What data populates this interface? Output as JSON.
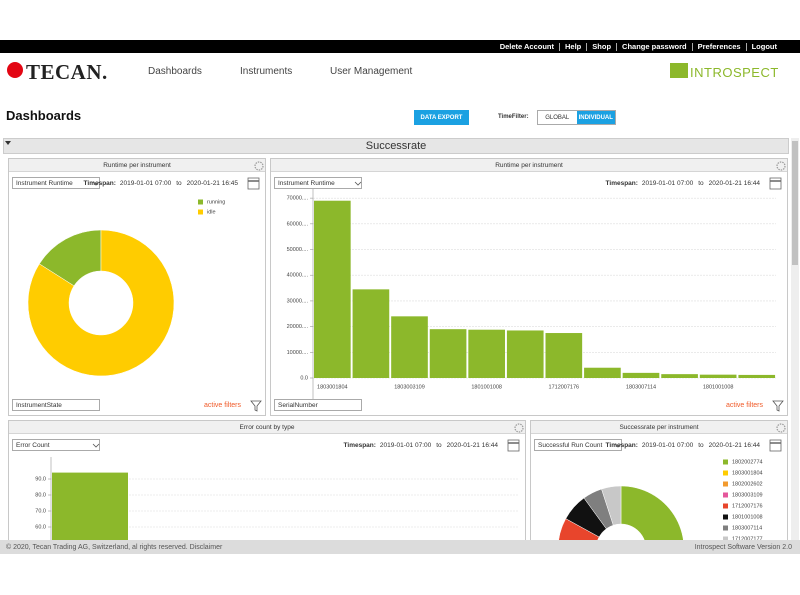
{
  "top_links": [
    "Delete Account",
    "Help",
    "Shop",
    "Change password",
    "Preferences",
    "Logout"
  ],
  "logo": "TECAN.",
  "nav": [
    "Dashboards",
    "Instruments",
    "User Management"
  ],
  "brand": "INTROSPECT",
  "page_title": "Dashboards",
  "export_button": "DATA EXPORT",
  "time_filter": {
    "label": "TimeFilter:",
    "options": [
      "GLOBAL",
      "INDIVIDUAL"
    ]
  },
  "section_title": "Successrate",
  "panels": [
    {
      "title": "Runtime per instrument",
      "dropdown": "Instrument Runtime",
      "timespan_label": "Timespan:",
      "from": "2019-01-01 07:00",
      "to_label": "to",
      "to": "2020-01-21 16:45",
      "bottom_dropdown": "InstrumentState",
      "filters": "active filters"
    },
    {
      "title": "Runtime per instrument",
      "dropdown": "Instrument Runtime",
      "timespan_label": "Timespan:",
      "from": "2019-01-01 07:00",
      "to_label": "to",
      "to": "2020-01-21 16:44",
      "bottom_dropdown": "SerialNumber",
      "filters": "active filters"
    },
    {
      "title": "Error count by type",
      "dropdown": "Error Count",
      "timespan_label": "Timespan:",
      "from": "2019-01-01 07:00",
      "to_label": "to",
      "to": "2020-01-21 16:44"
    },
    {
      "title": "Successrate per instrument",
      "dropdown": "Successful Run Count",
      "timespan_label": "Timespan:",
      "from": "2019-01-01 07:00",
      "to_label": "to",
      "to": "2020-01-21 16:44"
    }
  ],
  "chart_data": [
    {
      "type": "pie",
      "categories": [
        "running",
        "idle"
      ],
      "values": [
        16,
        84
      ],
      "colors": [
        "#8cb82b",
        "#ffcc00"
      ]
    },
    {
      "type": "bar",
      "categories": [
        "1803001804",
        null,
        "1803003109",
        null,
        "1801001008",
        null,
        "1712007176",
        null,
        "1803007114",
        null,
        "1801001008",
        null
      ],
      "values": [
        69000,
        34500,
        24000,
        19000,
        18800,
        18500,
        17500,
        4000,
        2000,
        1500,
        1300,
        1200
      ],
      "color": "#8cb82b",
      "ylim": [
        0,
        72000
      ],
      "yticks": [
        {
          "value": 0,
          "label": "0.0"
        },
        {
          "value": 10000,
          "label": "10000...."
        },
        {
          "value": 20000,
          "label": "20000...."
        },
        {
          "value": 30000,
          "label": "30000...."
        },
        {
          "value": 40000,
          "label": "40000...."
        },
        {
          "value": 50000,
          "label": "50000...."
        },
        {
          "value": 60000,
          "label": "60000...."
        },
        {
          "value": 70000,
          "label": "70000...."
        }
      ],
      "grid": true
    },
    {
      "type": "bar",
      "categories": [
        null
      ],
      "values": [
        94
      ],
      "color": "#8cb82b",
      "ylim": [
        0,
        100
      ],
      "yticks": [
        {
          "value": 60,
          "label": "60.0"
        },
        {
          "value": 70,
          "label": "70.0"
        },
        {
          "value": 80,
          "label": "80.0"
        },
        {
          "value": 90,
          "label": "90.0"
        }
      ],
      "grid": true
    },
    {
      "type": "pie",
      "categories": [
        "1802002774",
        "1803001804",
        "1802002602",
        "1803003109",
        "1712007176",
        "1801001008",
        "1803007114",
        "1712007177"
      ],
      "values": [
        64,
        2,
        3,
        6,
        8,
        7,
        5,
        5
      ],
      "colors": [
        "#8cb82b",
        "#ffcc00",
        "#f29a2e",
        "#e5579b",
        "#e8452c",
        "#111111",
        "#7f7f7f",
        "#c8c8c8"
      ]
    }
  ],
  "footer": {
    "left": "© 2020, Tecan Trading AG, Switzerland, al rights reserved. Disclaimer",
    "right": "Introspect Software Version 2.0"
  }
}
